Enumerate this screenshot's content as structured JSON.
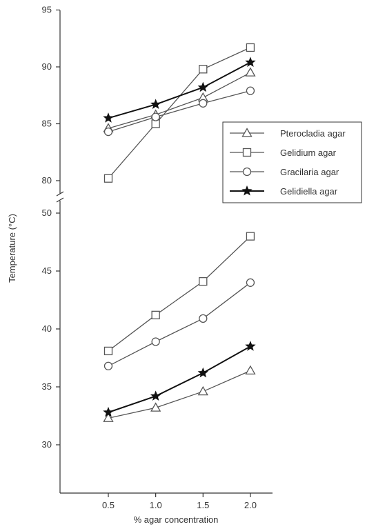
{
  "chart_data": {
    "type": "line",
    "xlabel": "% agar concentration",
    "ylabel": "Temperature (°C)",
    "x": [
      0.5,
      1.0,
      1.5,
      2.0
    ],
    "x_tick_labels": [
      "0.5",
      "1.0",
      "1.5",
      "2.0"
    ],
    "y_axis_break": true,
    "ylim_upper": [
      79,
      95
    ],
    "ylim_lower": [
      27,
      50
    ],
    "y_ticks_upper": [
      80,
      85,
      90,
      95
    ],
    "y_ticks_lower": [
      30,
      35,
      40,
      45,
      50
    ],
    "legend_position": "right",
    "series": [
      {
        "name": "Pterocladia agar",
        "marker": "triangle-open",
        "color": "#555555",
        "upper": [
          84.6,
          85.8,
          87.3,
          89.5
        ],
        "lower": [
          32.3,
          33.2,
          34.6,
          36.4
        ]
      },
      {
        "name": "Gelidium agar",
        "marker": "square-open",
        "color": "#555555",
        "upper": [
          80.2,
          85.0,
          89.8,
          91.7
        ],
        "lower": [
          38.1,
          41.2,
          44.1,
          48.0
        ]
      },
      {
        "name": "Gracilaria agar",
        "marker": "circle-open",
        "color": "#555555",
        "upper": [
          84.3,
          85.6,
          86.8,
          87.9
        ],
        "lower": [
          36.8,
          38.9,
          40.9,
          44.0
        ]
      },
      {
        "name": "Gelidiella agar",
        "marker": "star-filled",
        "color": "#111111",
        "upper": [
          85.5,
          86.7,
          88.2,
          90.4
        ],
        "lower": [
          32.8,
          34.2,
          36.2,
          38.5
        ]
      }
    ]
  }
}
